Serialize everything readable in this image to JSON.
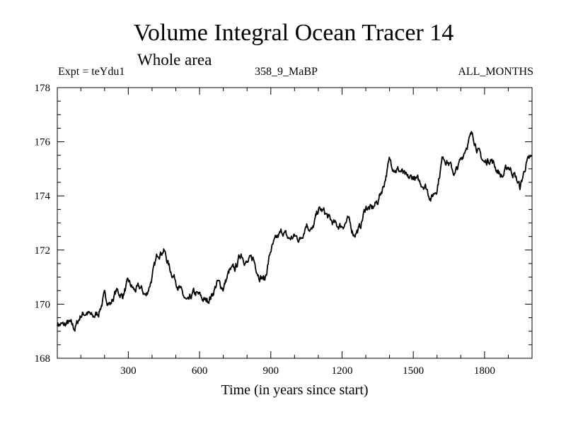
{
  "chart_data": {
    "type": "line",
    "title": "Volume Integral Ocean Tracer 14",
    "subtitle": "Whole area",
    "expt_label": "Expt = teYdu1",
    "center_label": "358_9_MaBP",
    "right_label": "ALL_MONTHS",
    "xlabel": "Time (in years since start)",
    "ylabel": "",
    "xlim": [
      1,
      2000
    ],
    "ylim": [
      168,
      178
    ],
    "x_ticks": [
      300,
      600,
      900,
      1200,
      1500,
      1800
    ],
    "y_ticks": [
      168,
      170,
      172,
      174,
      176,
      178
    ],
    "series": [
      {
        "name": "Volume Integral Ocean Tracer 14",
        "color": "#000000",
        "x": [
          1,
          25,
          50,
          75,
          100,
          125,
          150,
          175,
          200,
          225,
          250,
          275,
          300,
          325,
          350,
          375,
          400,
          425,
          450,
          475,
          500,
          525,
          550,
          575,
          600,
          625,
          650,
          675,
          700,
          725,
          750,
          775,
          800,
          825,
          850,
          875,
          900,
          925,
          950,
          975,
          1000,
          1025,
          1050,
          1075,
          1100,
          1125,
          1150,
          1175,
          1200,
          1225,
          1250,
          1275,
          1300,
          1325,
          1350,
          1375,
          1400,
          1425,
          1450,
          1475,
          1500,
          1525,
          1550,
          1575,
          1600,
          1625,
          1650,
          1675,
          1700,
          1725,
          1750,
          1775,
          1800,
          1825,
          1850,
          1875,
          1900,
          1925,
          1950,
          1975,
          2000
        ],
        "values": [
          169.3,
          169.2,
          169.3,
          169.1,
          169.6,
          169.7,
          169.5,
          169.7,
          170.3,
          170.0,
          170.5,
          170.3,
          170.8,
          170.5,
          170.6,
          170.3,
          171.0,
          171.9,
          172.0,
          171.3,
          170.9,
          170.4,
          170.0,
          170.4,
          170.3,
          170.1,
          170.3,
          170.8,
          170.6,
          171.2,
          171.3,
          171.9,
          171.5,
          171.7,
          171.1,
          170.9,
          172.0,
          172.4,
          172.7,
          172.4,
          172.5,
          172.4,
          173.0,
          172.7,
          173.5,
          173.4,
          173.1,
          172.9,
          172.9,
          173.1,
          172.6,
          172.8,
          173.6,
          173.5,
          173.8,
          174.4,
          175.3,
          175.0,
          174.9,
          174.6,
          174.7,
          174.5,
          174.4,
          173.9,
          174.3,
          175.5,
          175.2,
          174.8,
          175.3,
          175.9,
          176.3,
          175.6,
          175.2,
          175.4,
          175.0,
          174.7,
          175.1,
          174.8,
          174.3,
          175.2,
          175.4
        ]
      }
    ]
  }
}
